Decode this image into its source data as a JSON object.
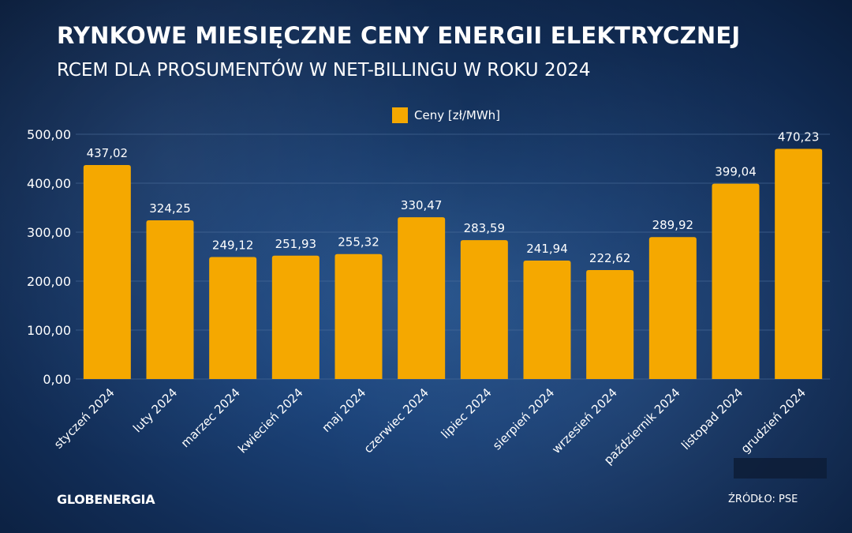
{
  "title": "RYNKOWE MIESIĘCZNE CENY ENERGII ELEKTRYCZNEJ",
  "subtitle": "RCEM DLA PROSUMENTÓW W NET-BILLINGU W ROKU 2024",
  "brand": "GLOBENERGIA",
  "source": "ŹRÓDŁO: PSE",
  "colors": {
    "bar": "#f5a800",
    "grid": "#4d6f9c",
    "text": "#ffffff"
  },
  "chart_data": {
    "type": "bar",
    "title": "RYNKOWE MIESIĘCZNE CENY ENERGII ELEKTRYCZNEJ",
    "subtitle": "RCEM DLA PROSUMENTÓW W NET-BILLINGU W ROKU 2024",
    "legend_position": "top-center",
    "grid": true,
    "ylim": [
      0,
      500
    ],
    "yticks": [
      "0,00",
      "100,00",
      "200,00",
      "300,00",
      "400,00",
      "500,00"
    ],
    "yticks_values": [
      0,
      100,
      200,
      300,
      400,
      500
    ],
    "categories": [
      "styczeń 2024",
      "luty 2024",
      "marzec 2024",
      "kwiecień 2024",
      "maj 2024",
      "czerwiec 2024",
      "lipiec 2024",
      "sierpień 2024",
      "wrzesień 2024",
      "październik 2024",
      "listopad 2024",
      "grudzień 2024"
    ],
    "series": [
      {
        "name": "Ceny [zł/MWh]",
        "values": [
          437.02,
          324.25,
          249.12,
          251.93,
          255.32,
          330.47,
          283.59,
          241.94,
          222.62,
          289.92,
          399.04,
          470.23
        ],
        "labels": [
          "437,02",
          "324,25",
          "249,12",
          "251,93",
          "255,32",
          "330,47",
          "283,59",
          "241,94",
          "222,62",
          "289,92",
          "399,04",
          "470,23"
        ]
      }
    ]
  }
}
